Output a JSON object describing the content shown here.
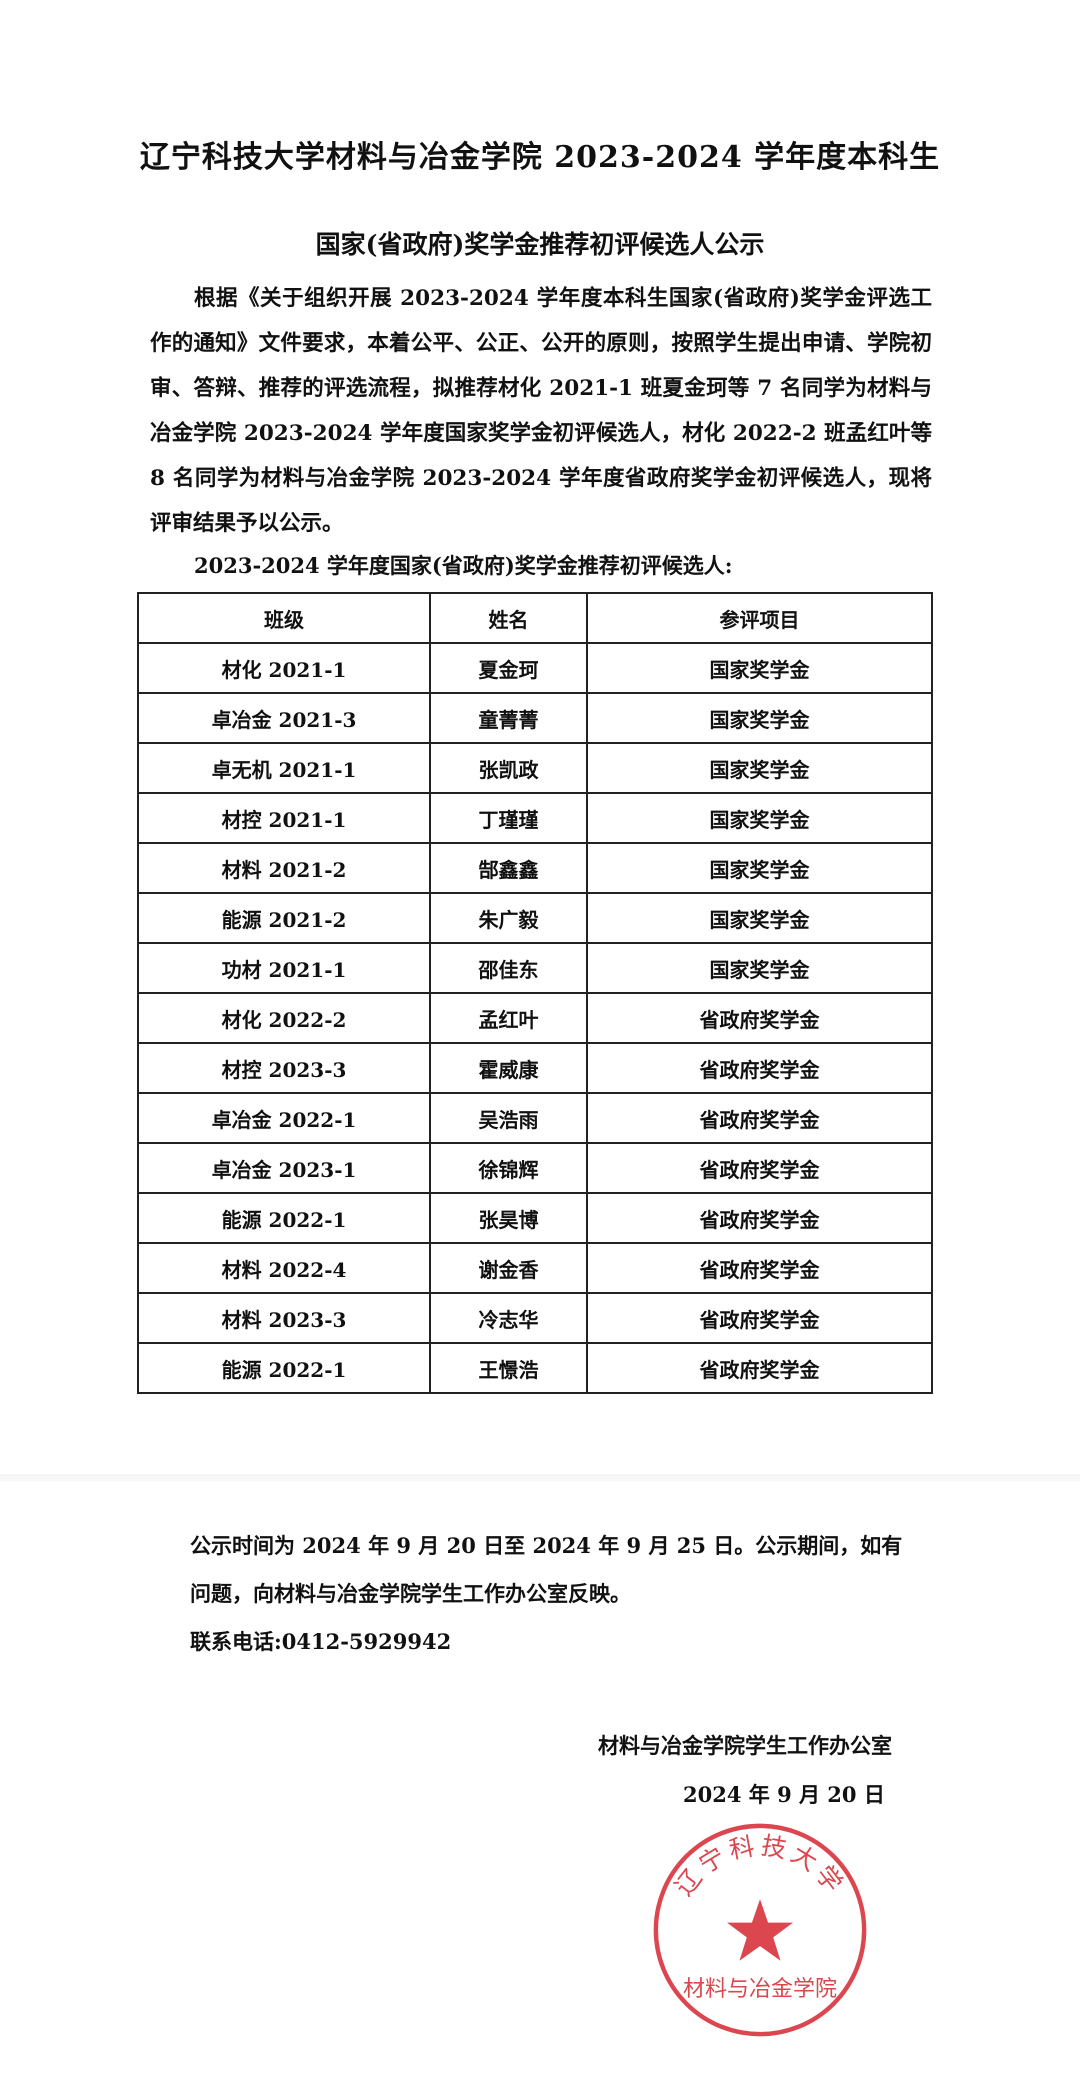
{
  "document": {
    "title": "辽宁科技大学材料与冶金学院 2023-2024 学年度本科生",
    "subtitle": "国家(省政府)奖学金推荐初评候选人公示",
    "body": "根据《关于组织开展 2023-2024 学年度本科生国家(省政府)奖学金评选工作的通知》文件要求，本着公平、公正、公开的原则，按照学生提出申请、学院初审、答辩、推荐的评选流程，拟推荐材化 2021-1 班夏金珂等 7 名同学为材料与冶金学院 2023-2024 学年度国家奖学金初评候选人，材化 2022-2 班孟红叶等 8 名同学为材料与冶金学院 2023-2024 学年度省政府奖学金初评候选人，现将评审结果予以公示。",
    "table_caption": "2023-2024 学年度国家(省政府)奖学金推荐初评候选人:",
    "table": {
      "headers": [
        "班级",
        "姓名",
        "参评项目"
      ],
      "rows": [
        [
          "材化 2021-1",
          "夏金珂",
          "国家奖学金"
        ],
        [
          "卓冶金 2021-3",
          "童菁菁",
          "国家奖学金"
        ],
        [
          "卓无机 2021-1",
          "张凯政",
          "国家奖学金"
        ],
        [
          "材控 2021-1",
          "丁瑾瑾",
          "国家奖学金"
        ],
        [
          "材料 2021-2",
          "郜鑫鑫",
          "国家奖学金"
        ],
        [
          "能源 2021-2",
          "朱广毅",
          "国家奖学金"
        ],
        [
          "功材 2021-1",
          "邵佳东",
          "国家奖学金"
        ],
        [
          "材化 2022-2",
          "孟红叶",
          "省政府奖学金"
        ],
        [
          "材控 2023-3",
          "霍威康",
          "省政府奖学金"
        ],
        [
          "卓冶金 2022-1",
          "吴浩雨",
          "省政府奖学金"
        ],
        [
          "卓冶金 2023-1",
          "徐锦辉",
          "省政府奖学金"
        ],
        [
          "能源 2022-1",
          "张昊博",
          "省政府奖学金"
        ],
        [
          "材料 2022-4",
          "谢金香",
          "省政府奖学金"
        ],
        [
          "材料 2023-3",
          "冷志华",
          "省政府奖学金"
        ],
        [
          "能源 2022-1",
          "王憬浩",
          "省政府奖学金"
        ]
      ]
    },
    "notice": "公示时间为 2024 年 9 月 20 日至 2024 年 9 月 25 日。公示期间，如有问题，向材料与冶金学院学生工作办公室反映。",
    "contact": "联系电话:0412-5929942",
    "signature": "材料与冶金学院学生工作办公室",
    "date": "2024 年 9 月 20 日",
    "stamp": {
      "text": "辽宁科技大学 材料与冶金学院",
      "color": "#d8323c"
    }
  }
}
